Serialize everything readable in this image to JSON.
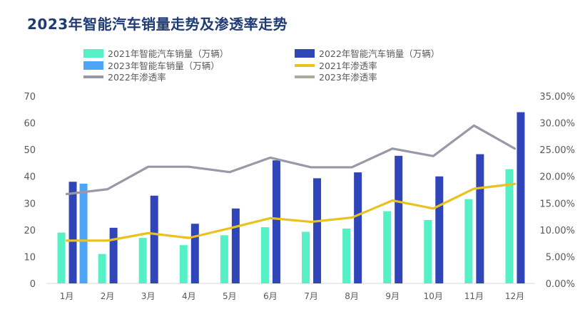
{
  "title": "2023年智能汽车销量走势及渗透率走势",
  "colors": {
    "s2021": "#56f0c6",
    "s2022": "#3045b8",
    "s2023": "#4da6f5",
    "r2021": "#e9c21e",
    "r2022": "#9a98a7",
    "r2023": "#a8ac99",
    "axis": "#d9d9d9",
    "text": "#595959"
  },
  "chart_data": {
    "type": "bar",
    "categories": [
      "1月",
      "2月",
      "3月",
      "4月",
      "5月",
      "6月",
      "7月",
      "8月",
      "9月",
      "10月",
      "11月",
      "12月"
    ],
    "y_left": {
      "min": 0,
      "max": 70,
      "ticks": [
        "0",
        "10",
        "20",
        "30",
        "40",
        "50",
        "60",
        "70"
      ]
    },
    "y_right": {
      "min": 0,
      "max": 0.35,
      "ticks": [
        "0.00%",
        "5.00%",
        "10.00%",
        "15.00%",
        "20.00%",
        "25.00%",
        "30.00%",
        "35.00%"
      ]
    },
    "legend": [
      {
        "name": "2021年智能汽车销量（万辆）",
        "kind": "bar",
        "color": "#56f0c6"
      },
      {
        "name": "2022年智能汽车销量（万辆）",
        "kind": "bar",
        "color": "#3045b8"
      },
      {
        "name": "2023年智能车销量（万辆）",
        "kind": "bar",
        "color": "#4da6f5"
      },
      {
        "name": "2021年渗透率",
        "kind": "line",
        "color": "#e9c21e"
      },
      {
        "name": "2022年渗透率",
        "kind": "line",
        "color": "#9a98a7"
      },
      {
        "name": "2023年渗透率",
        "kind": "line",
        "color": "#a8ac99"
      }
    ],
    "bar_series": [
      {
        "name": "2021年智能汽车销量（万辆）",
        "color": "#56f0c6",
        "values": [
          19,
          11,
          17,
          14.3,
          18,
          21,
          19.3,
          20.5,
          27,
          23.7,
          31.5,
          42.7
        ]
      },
      {
        "name": "2022年智能汽车销量（万辆）",
        "color": "#3045b8",
        "values": [
          38,
          20.8,
          32.8,
          22.3,
          28,
          46,
          39.3,
          41.5,
          47.7,
          40,
          48.3,
          64
        ]
      },
      {
        "name": "2023年智能车销量（万辆）",
        "color": "#4da6f5",
        "values": [
          37.3,
          null,
          null,
          null,
          null,
          null,
          null,
          null,
          null,
          null,
          null,
          null
        ]
      }
    ],
    "line_series": [
      {
        "name": "2021年渗透率",
        "color": "#e9c21e",
        "values": [
          0.08,
          0.08,
          0.094,
          0.085,
          0.103,
          0.122,
          0.115,
          0.123,
          0.155,
          0.14,
          0.177,
          0.186
        ]
      },
      {
        "name": "2022年渗透率",
        "color": "#9a98a7",
        "values": [
          0.167,
          0.176,
          0.218,
          0.218,
          0.208,
          0.235,
          0.217,
          0.217,
          0.252,
          0.238,
          0.295,
          0.252
        ]
      },
      {
        "name": "2023年渗透率",
        "color": "#a8ac99",
        "values": [
          null,
          null,
          null,
          null,
          null,
          null,
          null,
          null,
          null,
          null,
          null,
          null
        ]
      }
    ]
  }
}
